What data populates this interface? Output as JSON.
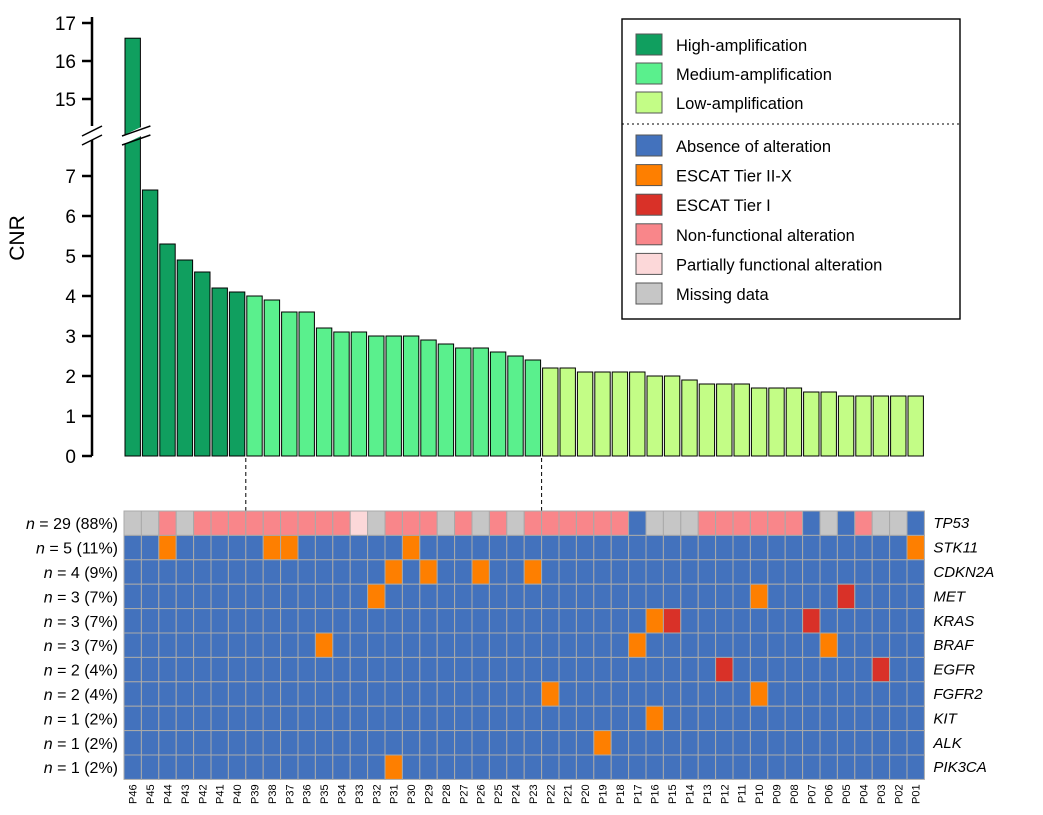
{
  "chart_data": {
    "type": "bar",
    "ylabel": "CNR",
    "y_ticks_lower": [
      0,
      1,
      2,
      3,
      4,
      5,
      6,
      7
    ],
    "y_ticks_upper": [
      15,
      16,
      17
    ],
    "y_axis_break": [
      7.5,
      14.5
    ],
    "categories": [
      "P46",
      "P45",
      "P44",
      "P43",
      "P42",
      "P41",
      "P40",
      "P39",
      "P38",
      "P37",
      "P36",
      "P35",
      "P34",
      "P33",
      "P32",
      "P31",
      "P30",
      "P29",
      "P28",
      "P27",
      "P26",
      "P25",
      "P24",
      "P23",
      "P22",
      "P21",
      "P20",
      "P19",
      "P18",
      "P17",
      "P16",
      "P15",
      "P14",
      "P13",
      "P12",
      "P11",
      "P10",
      "P09",
      "P08",
      "P07",
      "P06",
      "P05",
      "P04",
      "P03",
      "P02",
      "P01"
    ],
    "values": [
      16.6,
      6.65,
      5.3,
      4.9,
      4.6,
      4.2,
      4.1,
      4.0,
      3.9,
      3.6,
      3.6,
      3.2,
      3.1,
      3.1,
      3.0,
      3.0,
      3.0,
      2.9,
      2.8,
      2.7,
      2.7,
      2.6,
      2.5,
      2.4,
      2.2,
      2.2,
      2.1,
      2.1,
      2.1,
      2.1,
      2.0,
      2.0,
      1.9,
      1.8,
      1.8,
      1.8,
      1.7,
      1.7,
      1.7,
      1.6,
      1.6,
      1.5,
      1.5,
      1.5,
      1.5,
      1.5
    ],
    "amplification_level": [
      "H",
      "H",
      "H",
      "H",
      "H",
      "H",
      "H",
      "M",
      "M",
      "M",
      "M",
      "M",
      "M",
      "M",
      "M",
      "M",
      "M",
      "M",
      "M",
      "M",
      "M",
      "M",
      "M",
      "M",
      "L",
      "L",
      "L",
      "L",
      "L",
      "L",
      "L",
      "L",
      "L",
      "L",
      "L",
      "L",
      "L",
      "L",
      "L",
      "L",
      "L",
      "L",
      "L",
      "L",
      "L",
      "L"
    ],
    "amplification_colors": {
      "H": "#109f5f",
      "M": "#5af08d",
      "L": "#c3fd86"
    },
    "legend_amplification": [
      {
        "key": "H",
        "label": "High-amplification"
      },
      {
        "key": "M",
        "label": "Medium-amplification"
      },
      {
        "key": "L",
        "label": "Low-amplification"
      }
    ],
    "legend_alteration": [
      {
        "key": "A",
        "label": "Absence of alteration",
        "color": "#4372bd"
      },
      {
        "key": "O",
        "label": "ESCAT Tier II-X",
        "color": "#fe7f00"
      },
      {
        "key": "R",
        "label": "ESCAT Tier I",
        "color": "#d93128"
      },
      {
        "key": "N",
        "label": "Non-functional alteration",
        "color": "#f9868a"
      },
      {
        "key": "P",
        "label": "Partially functional alteration",
        "color": "#fcd8d9"
      },
      {
        "key": "G",
        "label": "Missing data",
        "color": "#c6c6c6"
      }
    ],
    "heatmap": {
      "default_state": "A",
      "rows": [
        {
          "label_n": "n",
          "label_rest": " = 29 (88%)",
          "gene": "TP53",
          "states": [
            "G",
            "G",
            "N",
            "G",
            "N",
            "N",
            "N",
            "N",
            "N",
            "N",
            "N",
            "N",
            "N",
            "P",
            "G",
            "N",
            "N",
            "N",
            "G",
            "N",
            "G",
            "N",
            "G",
            "N",
            "N",
            "N",
            "N",
            "N",
            "N",
            "A",
            "G",
            "G",
            "G",
            "N",
            "N",
            "N",
            "N",
            "N",
            "N",
            "A",
            "G",
            "A",
            "N",
            "G",
            "G",
            "A"
          ]
        },
        {
          "label_n": "n",
          "label_rest": " = 5 (11%)",
          "gene": "STK11",
          "alterations": [
            {
              "patient": "P44",
              "state": "O"
            },
            {
              "patient": "P38",
              "state": "O"
            },
            {
              "patient": "P37",
              "state": "O"
            },
            {
              "patient": "P30",
              "state": "O"
            },
            {
              "patient": "P01",
              "state": "O"
            }
          ]
        },
        {
          "label_n": "n",
          "label_rest": " = 4 (9%)",
          "gene": "CDKN2A",
          "alterations": [
            {
              "patient": "P31",
              "state": "O"
            },
            {
              "patient": "P29",
              "state": "O"
            },
            {
              "patient": "P26",
              "state": "O"
            },
            {
              "patient": "P23",
              "state": "O"
            }
          ]
        },
        {
          "label_n": "n",
          "label_rest": " = 3 (7%)",
          "gene": "MET",
          "alterations": [
            {
              "patient": "P32",
              "state": "O"
            },
            {
              "patient": "P10",
              "state": "O"
            },
            {
              "patient": "P05",
              "state": "R"
            }
          ]
        },
        {
          "label_n": "n",
          "label_rest": " = 3 (7%)",
          "gene": "KRAS",
          "alterations": [
            {
              "patient": "P16",
              "state": "O"
            },
            {
              "patient": "P15",
              "state": "R"
            },
            {
              "patient": "P07",
              "state": "R"
            }
          ]
        },
        {
          "label_n": "n",
          "label_rest": " = 3 (7%)",
          "gene": "BRAF",
          "alterations": [
            {
              "patient": "P35",
              "state": "O"
            },
            {
              "patient": "P17",
              "state": "O"
            },
            {
              "patient": "P06",
              "state": "O"
            }
          ]
        },
        {
          "label_n": "n",
          "label_rest": " = 2 (4%)",
          "gene": "EGFR",
          "alterations": [
            {
              "patient": "P12",
              "state": "R"
            },
            {
              "patient": "P03",
              "state": "R"
            }
          ]
        },
        {
          "label_n": "n",
          "label_rest": " = 2 (4%)",
          "gene": "FGFR2",
          "alterations": [
            {
              "patient": "P22",
              "state": "O"
            },
            {
              "patient": "P10",
              "state": "O"
            }
          ]
        },
        {
          "label_n": "n",
          "label_rest": " = 1 (2%)",
          "gene": "KIT",
          "alterations": [
            {
              "patient": "P16",
              "state": "O"
            }
          ]
        },
        {
          "label_n": "n",
          "label_rest": " = 1 (2%)",
          "gene": "ALK",
          "alterations": [
            {
              "patient": "P19",
              "state": "O"
            }
          ]
        },
        {
          "label_n": "n",
          "label_rest": " = 1 (2%)",
          "gene": "PIK3CA",
          "alterations": [
            {
              "patient": "P31",
              "state": "O"
            }
          ]
        }
      ]
    }
  }
}
